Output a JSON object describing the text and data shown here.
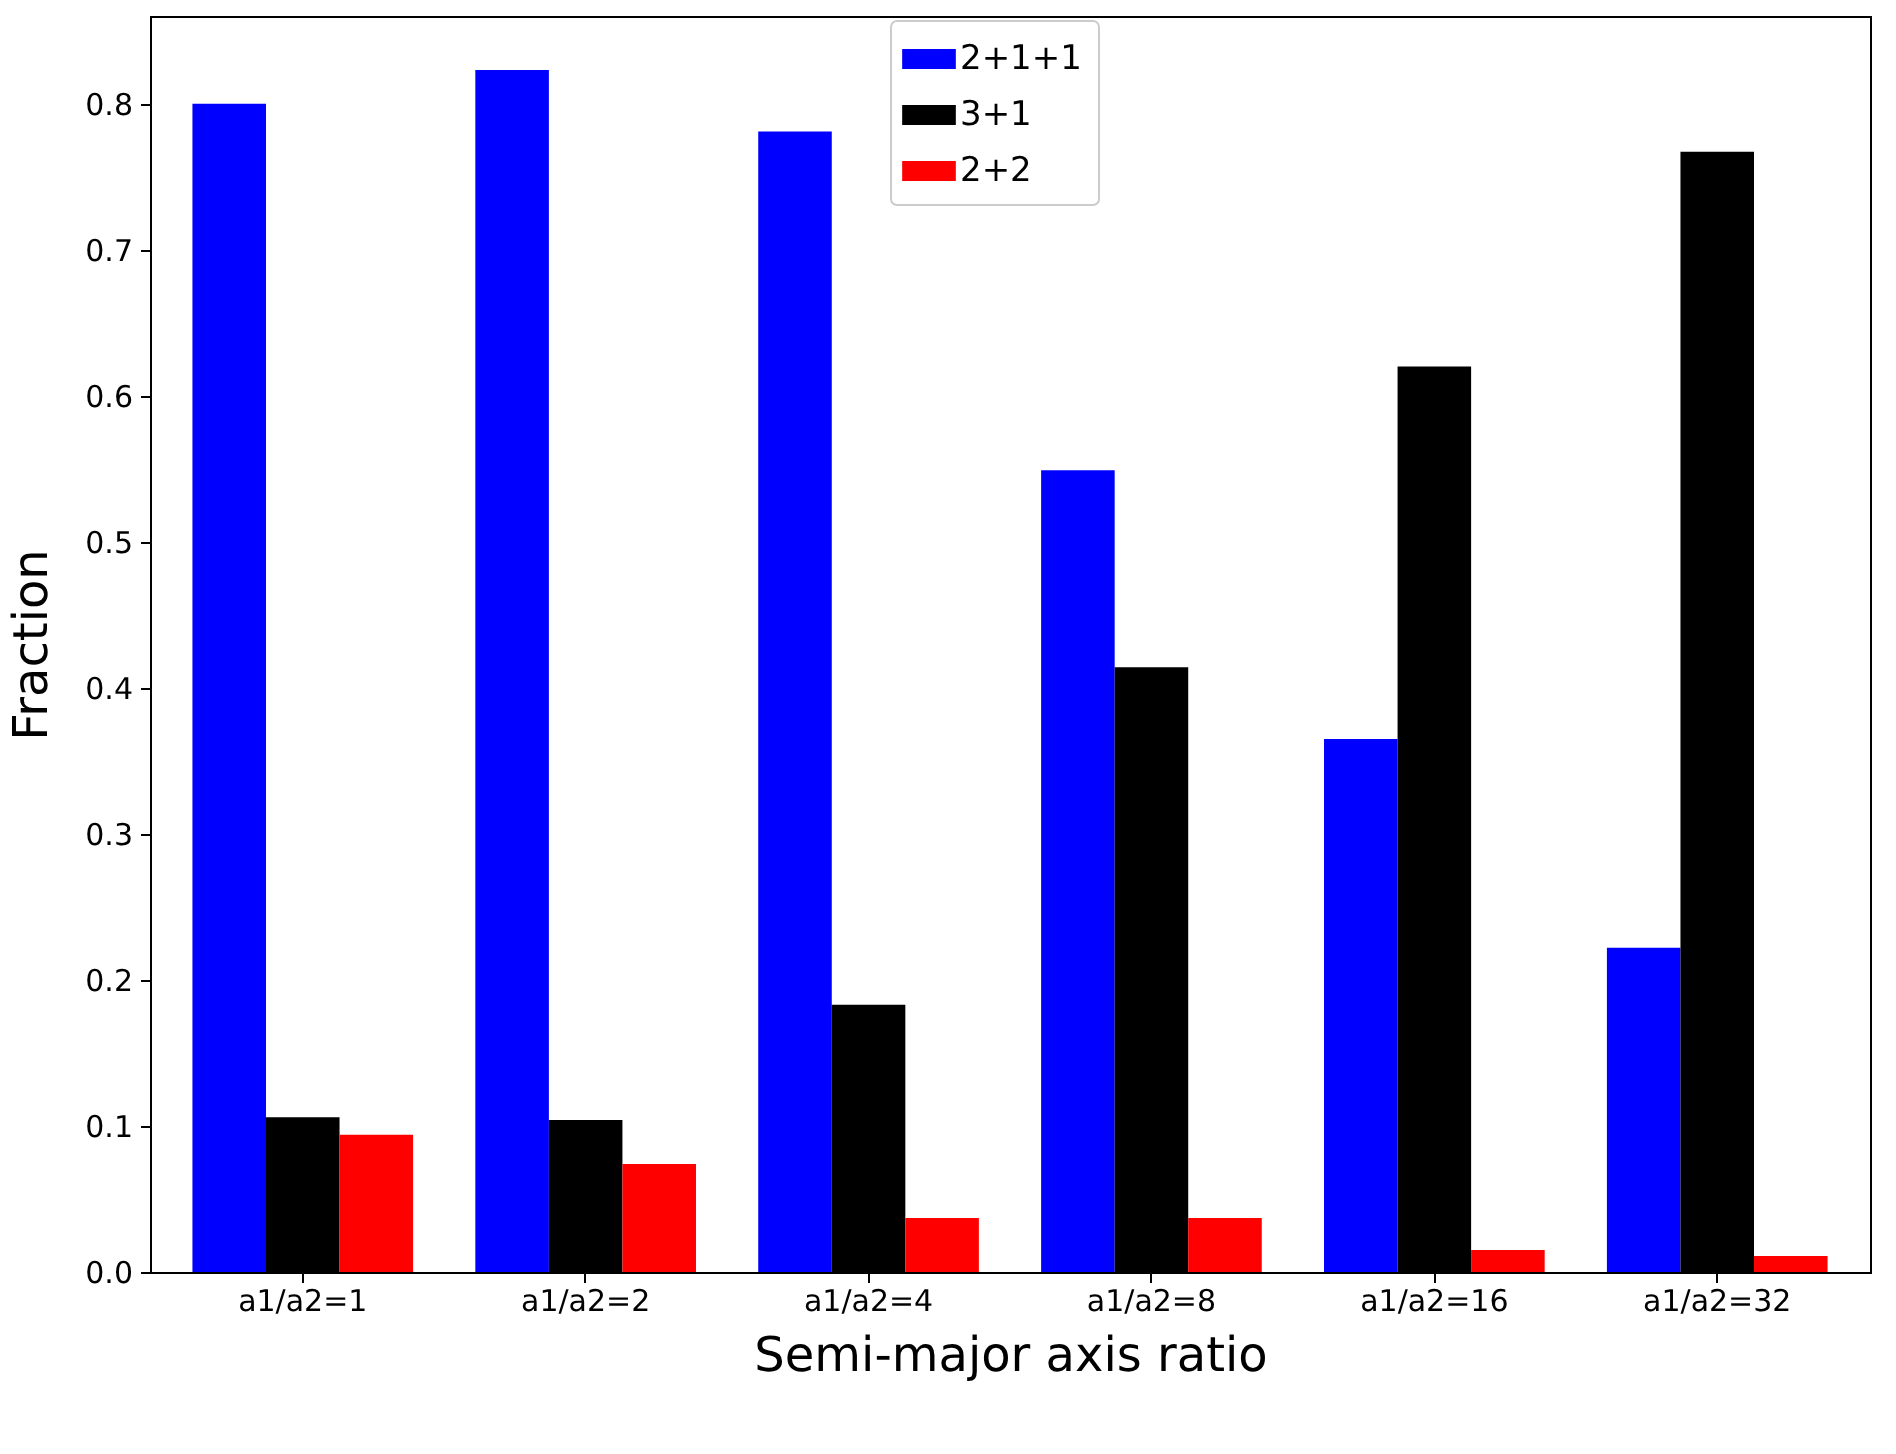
{
  "chart_data": {
    "type": "bar",
    "xlabel": "Semi-major axis ratio",
    "ylabel": "Fraction",
    "categories": [
      "a1/a2=1",
      "a1/a2=2",
      "a1/a2=4",
      "a1/a2=8",
      "a1/a2=16",
      "a1/a2=32"
    ],
    "series": [
      {
        "name": "2+1+1",
        "color": "#0000ff",
        "values": [
          0.8,
          0.823,
          0.781,
          0.549,
          0.365,
          0.222
        ]
      },
      {
        "name": "3+1",
        "color": "#000000",
        "values": [
          0.106,
          0.104,
          0.183,
          0.414,
          0.62,
          0.767
        ]
      },
      {
        "name": "2+2",
        "color": "#ff0000",
        "values": [
          0.094,
          0.074,
          0.037,
          0.037,
          0.015,
          0.011
        ]
      }
    ],
    "ylim": [
      0,
      0.86
    ],
    "yticks": [
      {
        "value": 0,
        "label": "0.0"
      },
      0.1,
      0.2,
      0.3,
      0.4,
      0.5,
      0.6,
      0.7,
      0.8
    ],
    "grid": false,
    "legend": "top"
  }
}
